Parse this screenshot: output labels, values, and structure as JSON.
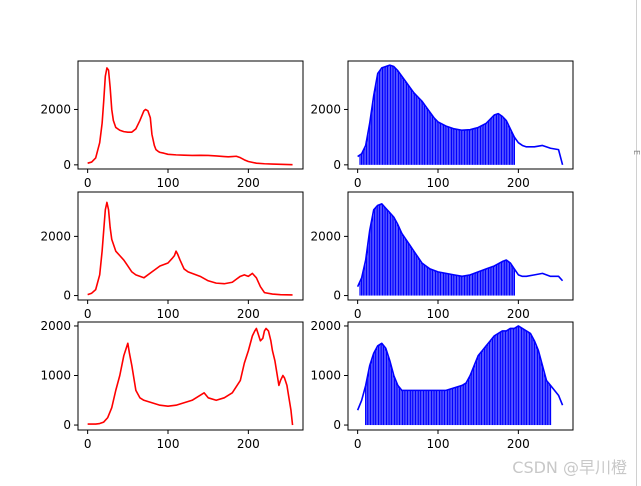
{
  "watermark": "CSDN @早川橙",
  "edge_text": "E",
  "colors": {
    "left_series": "#ff0000",
    "right_series": "#0000ff"
  },
  "chart_data": [
    {
      "type": "line",
      "color": "#ff0000",
      "xlim": [
        -12,
        268
      ],
      "ylim": [
        -150,
        3750
      ],
      "xticks": [
        0,
        100,
        200
      ],
      "yticks": [
        0,
        2000
      ],
      "x": [
        0,
        5,
        10,
        15,
        18,
        20,
        22,
        24,
        26,
        28,
        30,
        32,
        35,
        40,
        45,
        50,
        55,
        60,
        65,
        70,
        72,
        75,
        78,
        80,
        83,
        85,
        88,
        90,
        95,
        100,
        110,
        120,
        130,
        140,
        150,
        160,
        170,
        175,
        180,
        185,
        190,
        195,
        200,
        210,
        220,
        230,
        240,
        250,
        255
      ],
      "y": [
        60,
        100,
        250,
        800,
        1500,
        2300,
        3200,
        3500,
        3420,
        2800,
        2000,
        1600,
        1350,
        1250,
        1200,
        1180,
        1180,
        1300,
        1600,
        1950,
        2000,
        1950,
        1700,
        1100,
        700,
        550,
        480,
        450,
        420,
        380,
        360,
        350,
        340,
        345,
        340,
        320,
        300,
        290,
        300,
        310,
        260,
        180,
        120,
        60,
        40,
        30,
        20,
        10,
        5
      ],
      "hist_style": false
    },
    {
      "type": "line",
      "color": "#0000ff",
      "xlim": [
        -12,
        268
      ],
      "ylim": [
        -150,
        3750
      ],
      "xticks": [
        0,
        100,
        200
      ],
      "yticks": [
        0,
        2000
      ],
      "x": [
        0,
        5,
        10,
        15,
        20,
        25,
        30,
        35,
        40,
        45,
        50,
        55,
        60,
        65,
        70,
        75,
        80,
        85,
        90,
        95,
        100,
        110,
        120,
        130,
        140,
        150,
        160,
        170,
        175,
        180,
        185,
        190,
        195,
        200,
        205,
        210,
        215,
        220,
        230,
        240,
        250,
        255
      ],
      "y": [
        300,
        400,
        700,
        1500,
        2500,
        3300,
        3500,
        3550,
        3600,
        3550,
        3400,
        3200,
        3000,
        2800,
        2600,
        2450,
        2300,
        2100,
        1900,
        1700,
        1550,
        1400,
        1300,
        1250,
        1270,
        1350,
        1500,
        1800,
        1850,
        1750,
        1600,
        1300,
        1000,
        800,
        700,
        650,
        650,
        650,
        700,
        600,
        550,
        0
      ],
      "hist_style": true,
      "comb_end": 195
    },
    {
      "type": "line",
      "color": "#ff0000",
      "xlim": [
        -12,
        268
      ],
      "ylim": [
        -150,
        3500
      ],
      "xticks": [
        0,
        100,
        200
      ],
      "yticks": [
        0,
        2000
      ],
      "x": [
        0,
        5,
        10,
        15,
        18,
        20,
        22,
        24,
        26,
        28,
        30,
        35,
        40,
        45,
        50,
        55,
        60,
        70,
        80,
        90,
        100,
        105,
        108,
        110,
        112,
        115,
        120,
        125,
        130,
        140,
        150,
        160,
        170,
        180,
        185,
        190,
        195,
        200,
        205,
        210,
        215,
        220,
        230,
        240,
        255
      ],
      "y": [
        30,
        80,
        200,
        700,
        1500,
        2200,
        2900,
        3150,
        2900,
        2300,
        1900,
        1500,
        1350,
        1200,
        1000,
        800,
        700,
        600,
        800,
        1000,
        1100,
        1250,
        1350,
        1500,
        1400,
        1200,
        900,
        800,
        750,
        650,
        500,
        420,
        400,
        450,
        550,
        650,
        700,
        650,
        750,
        600,
        300,
        100,
        50,
        30,
        20
      ],
      "hist_style": false
    },
    {
      "type": "line",
      "color": "#0000ff",
      "xlim": [
        -12,
        268
      ],
      "ylim": [
        -150,
        3500
      ],
      "xticks": [
        0,
        100,
        200
      ],
      "yticks": [
        0,
        2000
      ],
      "x": [
        0,
        5,
        10,
        15,
        20,
        25,
        30,
        35,
        40,
        45,
        50,
        55,
        60,
        65,
        70,
        75,
        80,
        85,
        90,
        95,
        100,
        110,
        120,
        130,
        140,
        150,
        160,
        170,
        180,
        185,
        190,
        195,
        200,
        205,
        210,
        220,
        230,
        240,
        250,
        255
      ],
      "y": [
        300,
        600,
        1200,
        2200,
        2900,
        3050,
        3100,
        2950,
        2800,
        2650,
        2400,
        2100,
        1900,
        1700,
        1500,
        1300,
        1100,
        1000,
        900,
        850,
        800,
        750,
        700,
        650,
        700,
        800,
        900,
        1000,
        1150,
        1200,
        1100,
        900,
        700,
        650,
        650,
        700,
        750,
        650,
        650,
        500
      ],
      "hist_style": true,
      "comb_end": 195
    },
    {
      "type": "line",
      "color": "#ff0000",
      "xlim": [
        -12,
        268
      ],
      "ylim": [
        -100,
        2080
      ],
      "xticks": [
        0,
        100,
        200
      ],
      "yticks": [
        0,
        1000,
        2000
      ],
      "x": [
        0,
        5,
        10,
        15,
        20,
        25,
        30,
        35,
        40,
        45,
        48,
        50,
        52,
        55,
        58,
        60,
        65,
        70,
        80,
        90,
        100,
        110,
        120,
        130,
        140,
        145,
        150,
        160,
        170,
        180,
        190,
        195,
        200,
        205,
        208,
        210,
        212,
        215,
        218,
        220,
        222,
        225,
        228,
        230,
        233,
        235,
        238,
        240,
        243,
        245,
        248,
        250,
        253,
        255
      ],
      "y": [
        20,
        20,
        20,
        30,
        60,
        150,
        350,
        700,
        1000,
        1400,
        1550,
        1650,
        1450,
        1200,
        900,
        700,
        550,
        500,
        450,
        400,
        380,
        400,
        450,
        500,
        600,
        650,
        550,
        500,
        550,
        650,
        900,
        1250,
        1500,
        1800,
        1900,
        1950,
        1850,
        1700,
        1750,
        1900,
        1950,
        1900,
        1700,
        1500,
        1300,
        1100,
        800,
        900,
        1000,
        950,
        800,
        600,
        300,
        0
      ],
      "hist_style": false
    },
    {
      "type": "line",
      "color": "#0000ff",
      "xlim": [
        -12,
        268
      ],
      "ylim": [
        -100,
        2080
      ],
      "xticks": [
        0,
        100,
        200
      ],
      "yticks": [
        0,
        1000,
        2000
      ],
      "x": [
        0,
        5,
        10,
        15,
        20,
        25,
        30,
        35,
        40,
        45,
        50,
        55,
        60,
        65,
        70,
        75,
        80,
        85,
        90,
        95,
        100,
        110,
        120,
        130,
        135,
        140,
        145,
        150,
        155,
        160,
        165,
        170,
        175,
        180,
        185,
        190,
        195,
        200,
        205,
        210,
        215,
        220,
        225,
        230,
        235,
        240,
        245,
        250,
        255
      ],
      "y": [
        300,
        500,
        800,
        1200,
        1450,
        1600,
        1650,
        1550,
        1300,
        1000,
        800,
        700,
        700,
        700,
        700,
        700,
        700,
        700,
        700,
        700,
        700,
        700,
        750,
        800,
        850,
        1000,
        1200,
        1400,
        1500,
        1600,
        1700,
        1800,
        1850,
        1900,
        1900,
        1950,
        1950,
        2000,
        1950,
        1900,
        1850,
        1700,
        1500,
        1200,
        900,
        800,
        700,
        600,
        400
      ],
      "hist_style": true,
      "comb_start": 10,
      "comb_end": 240
    }
  ]
}
